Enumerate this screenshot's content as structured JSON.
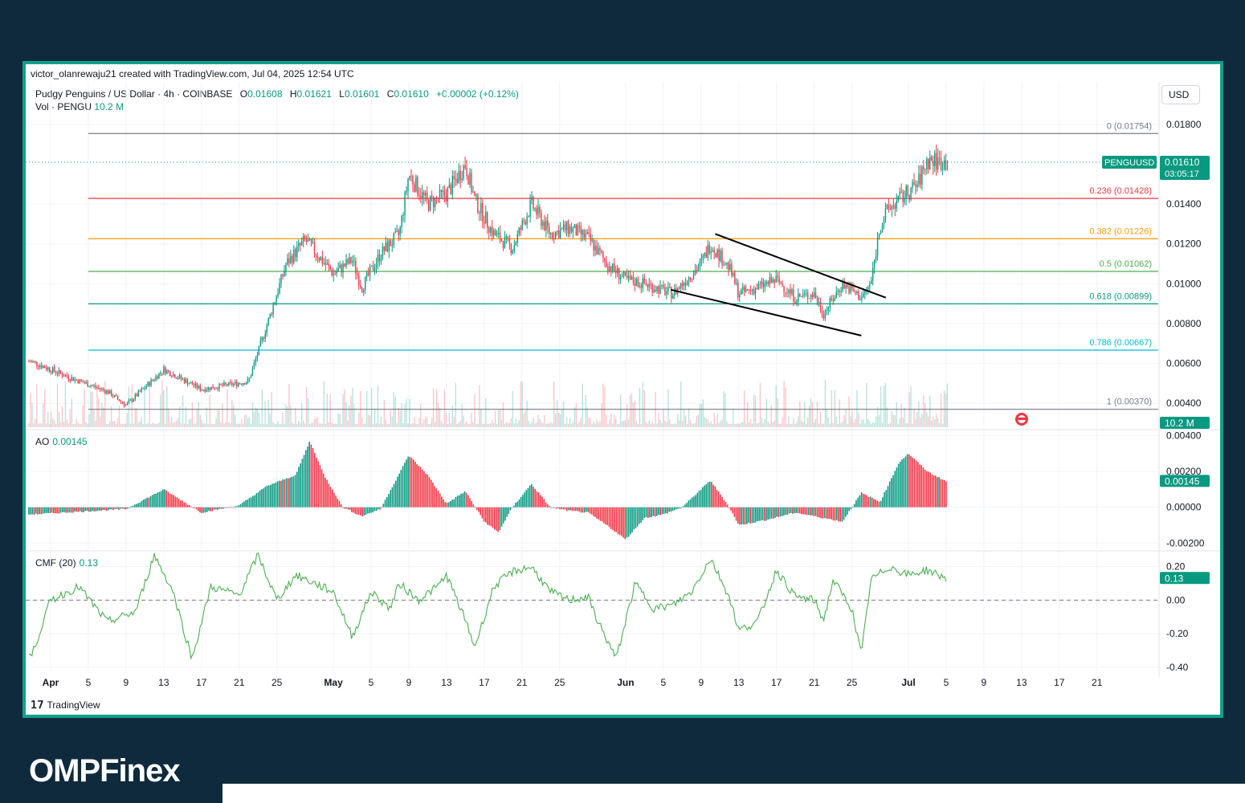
{
  "header": {
    "credit": "victor_olanrewaju21 created with TradingView.com, Jul 04, 2025 12:54 UTC",
    "symbol": "Pudgy Penguins / US Dollar · 4h · COINBASE",
    "ohlc": {
      "o_label": "O",
      "o": "0.01608",
      "h_label": "H",
      "h": "0.01621",
      "l_label": "L",
      "l": "0.01601",
      "c_label": "C",
      "c": "0.01610",
      "change": "+0.00002 (+0.12%)"
    },
    "volume_label": "Vol · PENGU",
    "volume_value": "10.2 M",
    "currency_button": "USD"
  },
  "price_tag": {
    "symbol": "PENGUUSD",
    "price": "0.01610",
    "countdown": "03:05:17"
  },
  "volume_tag": "10.2 M",
  "ao_tag": "0.00145",
  "cmf_tag": "0.13",
  "footer": {
    "tradingview": "TradingView",
    "brand": "OMPFinex"
  },
  "colors": {
    "up": "#089981",
    "down": "#f23645",
    "frame": "#10a08a",
    "background": "#0f2a3d",
    "cmf": "#4caf50"
  },
  "chart_data": [
    {
      "type": "candlestick",
      "title": "Pudgy Penguins / US Dollar · 4h · COINBASE",
      "ylim": [
        0.0028,
        0.0188
      ],
      "yticks": [
        "0.01800",
        "0.01400",
        "0.01200",
        "0.01000",
        "0.00800",
        "0.00600",
        "0.00400"
      ],
      "ytick_values": [
        0.018,
        0.014,
        0.012,
        0.01,
        0.008,
        0.006,
        0.004
      ],
      "xticks": [
        "Apr",
        "5",
        "9",
        "13",
        "17",
        "21",
        "25",
        "May",
        "5",
        "9",
        "13",
        "17",
        "21",
        "25",
        "Jun",
        "5",
        "9",
        "13",
        "17",
        "21",
        "25",
        "Jul",
        "5",
        "9",
        "13",
        "17",
        "21"
      ],
      "xtick_days": [
        0,
        4,
        8,
        12,
        16,
        20,
        24,
        30,
        34,
        38,
        42,
        46,
        50,
        54,
        61,
        65,
        69,
        73,
        77,
        81,
        85,
        91,
        95,
        99,
        103,
        107,
        111
      ],
      "x_domain_days": [
        -2.3,
        117.5
      ],
      "series_anchors_day_close": [
        [
          -2,
          0.0061
        ],
        [
          2,
          0.0053
        ],
        [
          6,
          0.0046
        ],
        [
          8,
          0.0039
        ],
        [
          12,
          0.0057
        ],
        [
          16,
          0.0047
        ],
        [
          21,
          0.0051
        ],
        [
          23,
          0.008
        ],
        [
          25,
          0.011
        ],
        [
          27,
          0.0122
        ],
        [
          30,
          0.0105
        ],
        [
          32,
          0.0112
        ],
        [
          33,
          0.0098
        ],
        [
          35,
          0.0115
        ],
        [
          37,
          0.0125
        ],
        [
          38,
          0.0155
        ],
        [
          40,
          0.014
        ],
        [
          42,
          0.0145
        ],
        [
          44,
          0.016
        ],
        [
          45,
          0.0142
        ],
        [
          47,
          0.0125
        ],
        [
          49,
          0.0118
        ],
        [
          51,
          0.014
        ],
        [
          53,
          0.0125
        ],
        [
          55,
          0.0128
        ],
        [
          57,
          0.0123
        ],
        [
          59,
          0.011
        ],
        [
          61,
          0.0102
        ],
        [
          63,
          0.01
        ],
        [
          66,
          0.0095
        ],
        [
          69,
          0.011
        ],
        [
          70,
          0.012
        ],
        [
          72,
          0.0108
        ],
        [
          73,
          0.0095
        ],
        [
          75,
          0.0098
        ],
        [
          77,
          0.0102
        ],
        [
          79,
          0.0093
        ],
        [
          81,
          0.0095
        ],
        [
          82,
          0.0085
        ],
        [
          84,
          0.01
        ],
        [
          86,
          0.0093
        ],
        [
          87,
          0.01
        ],
        [
          88,
          0.013
        ],
        [
          89,
          0.0138
        ],
        [
          92,
          0.015
        ],
        [
          93,
          0.0162
        ],
        [
          95,
          0.0161
        ]
      ],
      "last_close": 0.0161,
      "fibonacci": [
        {
          "level": "0",
          "price": 0.01754,
          "label": "0 (0.01754)",
          "color": "#787b86"
        },
        {
          "level": "0.236",
          "price": 0.01428,
          "label": "0.236 (0.01428)",
          "color": "#f23645"
        },
        {
          "level": "0.382",
          "price": 0.01226,
          "label": "0.382 (0.01226)",
          "color": "#ff9800"
        },
        {
          "level": "0.5",
          "price": 0.01062,
          "label": "0.5 (0.01062)",
          "color": "#4caf50"
        },
        {
          "level": "0.618",
          "price": 0.00899,
          "label": "0.618 (0.00899)",
          "color": "#089981"
        },
        {
          "level": "0.786",
          "price": 0.00667,
          "label": "0.786 (0.00667)",
          "color": "#00bcd4"
        },
        {
          "level": "1",
          "price": 0.0037,
          "label": "1 (0.00370)",
          "color": "#787b86"
        }
      ],
      "trendlines": [
        {
          "from": [
            70.5,
            0.0125
          ],
          "to": [
            88.6,
            0.0093
          ]
        },
        {
          "from": [
            65.8,
            0.0097
          ],
          "to": [
            86.0,
            0.0074
          ]
        }
      ]
    },
    {
      "type": "histogram",
      "title": "AO",
      "value": "0.00145",
      "ylim": [
        -0.0023,
        0.0042
      ],
      "yticks": [
        "0.00400",
        "0.00200",
        "0.00000",
        "-0.00200"
      ],
      "ytick_values": [
        0.004,
        0.002,
        0.0,
        -0.002
      ],
      "anchors_day_value": [
        [
          -2,
          -0.0004
        ],
        [
          8,
          -0.0001
        ],
        [
          12,
          0.001
        ],
        [
          16,
          -0.0003
        ],
        [
          20,
          0.0001
        ],
        [
          23,
          0.0012
        ],
        [
          26,
          0.0018
        ],
        [
          27.5,
          0.0037
        ],
        [
          29,
          0.0018
        ],
        [
          31,
          0.0
        ],
        [
          33,
          -0.0005
        ],
        [
          35,
          -0.0001
        ],
        [
          38,
          0.0029
        ],
        [
          40,
          0.0018
        ],
        [
          42,
          0.0002
        ],
        [
          44,
          0.0009
        ],
        [
          46,
          -0.0008
        ],
        [
          47.5,
          -0.0014
        ],
        [
          49,
          0.0
        ],
        [
          51,
          0.0013
        ],
        [
          53,
          0.0
        ],
        [
          55,
          -0.0002
        ],
        [
          57,
          -0.0003
        ],
        [
          59,
          -0.001
        ],
        [
          61,
          -0.0018
        ],
        [
          63,
          -0.0006
        ],
        [
          65,
          -0.0004
        ],
        [
          67,
          0.0
        ],
        [
          70,
          0.0015
        ],
        [
          72,
          0.0
        ],
        [
          73,
          -0.001
        ],
        [
          76,
          -0.0007
        ],
        [
          79,
          -0.0003
        ],
        [
          82,
          -0.0006
        ],
        [
          84,
          -0.0008
        ],
        [
          86,
          0.0008
        ],
        [
          88,
          0.0003
        ],
        [
          90,
          0.0025
        ],
        [
          91,
          0.003
        ],
        [
          93,
          0.002
        ],
        [
          95,
          0.00145
        ]
      ]
    },
    {
      "type": "line",
      "title": "CMF (20)",
      "value": "0.13",
      "ylim": [
        -0.42,
        0.28
      ],
      "yticks": [
        "0.20",
        "0.00",
        "-0.20",
        "-0.40"
      ],
      "ytick_values": [
        0.2,
        0.0,
        -0.2,
        -0.4
      ],
      "anchors_day_value": [
        [
          -2,
          -0.33
        ],
        [
          0,
          0.0
        ],
        [
          3,
          0.08
        ],
        [
          6,
          -0.13
        ],
        [
          9,
          -0.07
        ],
        [
          11,
          0.27
        ],
        [
          13,
          0.05
        ],
        [
          15,
          -0.35
        ],
        [
          17,
          0.08
        ],
        [
          20,
          0.03
        ],
        [
          22,
          0.27
        ],
        [
          24,
          0.0
        ],
        [
          26,
          0.15
        ],
        [
          28,
          0.1
        ],
        [
          30,
          0.05
        ],
        [
          32,
          -0.22
        ],
        [
          34,
          0.05
        ],
        [
          36,
          -0.05
        ],
        [
          37,
          0.1
        ],
        [
          39,
          0.0
        ],
        [
          41,
          0.08
        ],
        [
          42,
          0.15
        ],
        [
          44,
          -0.12
        ],
        [
          45,
          -0.28
        ],
        [
          47,
          0.08
        ],
        [
          49,
          0.17
        ],
        [
          51,
          0.2
        ],
        [
          53,
          0.05
        ],
        [
          55,
          0.0
        ],
        [
          57,
          0.02
        ],
        [
          58,
          -0.12
        ],
        [
          60,
          -0.35
        ],
        [
          62,
          0.1
        ],
        [
          64,
          -0.05
        ],
        [
          66,
          -0.03
        ],
        [
          68,
          0.05
        ],
        [
          70,
          0.25
        ],
        [
          72,
          0.02
        ],
        [
          73,
          -0.18
        ],
        [
          75,
          -0.13
        ],
        [
          77,
          0.18
        ],
        [
          79,
          0.02
        ],
        [
          81,
          0.0
        ],
        [
          82,
          -0.12
        ],
        [
          83,
          0.12
        ],
        [
          85,
          -0.05
        ],
        [
          86,
          -0.33
        ],
        [
          87,
          0.12
        ],
        [
          89,
          0.2
        ],
        [
          91,
          0.15
        ],
        [
          93,
          0.18
        ],
        [
          95,
          0.13
        ]
      ]
    }
  ]
}
